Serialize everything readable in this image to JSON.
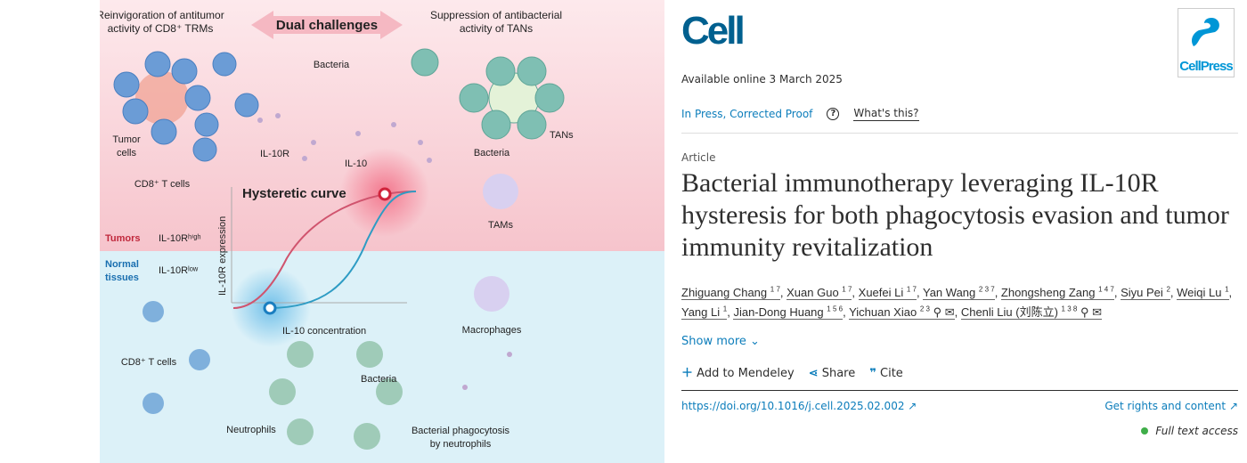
{
  "graphical_abstract": {
    "title_arrow": "Dual challenges",
    "left_heading": [
      "Reinvigoration of antitumor",
      "activity of CD8⁺ TRMs"
    ],
    "right_heading": [
      "Suppression of antibacterial",
      "activity of TANs"
    ],
    "labels": {
      "bacteria_top": "Bacteria",
      "tumor_cells": [
        "Tumor",
        "cells"
      ],
      "il10r": "IL-10R",
      "il10": "IL-10",
      "cd8_top": "CD8⁺ T cells",
      "tans": "TANs",
      "bacteria_right": "Bacteria",
      "tams": "TAMs",
      "hysteretic": "Hysteretic curve",
      "y_axis": "IL-10R expression",
      "x_axis": "IL-10 concentration",
      "tumors": "Tumors",
      "il10r_high": "IL-10Rʰⁱᵍʰ",
      "normal": [
        "Normal",
        "tissues"
      ],
      "il10r_low": "IL-10Rˡᵒʷ",
      "macrophages": "Macrophages",
      "cd8_bottom": "CD8⁺ T cells",
      "bacteria_bottom": "Bacteria",
      "neutrophils": "Neutrophils",
      "phagocytosis": [
        "Bacterial phagocytosis",
        "by neutrophils"
      ]
    },
    "colors": {
      "tumor_bg": "#fbe3e7",
      "normal_bg": "#d9f0f7",
      "red_curve": "#d0546e",
      "blue_curve": "#2e9cc4"
    }
  },
  "journal": {
    "logo": "Cell",
    "publisher_logo": "CellPress"
  },
  "available": "Available online 3 March 2025",
  "status": {
    "label": "In Press, Corrected Proof",
    "help": "?",
    "whats_this": "What's this?"
  },
  "article_type": "Article",
  "title": "Bacterial immunotherapy leveraging IL-10R hysteresis for both phagocytosis evasion and tumor immunity revitalization",
  "authors": [
    {
      "name": "Zhiguang Chang",
      "aff": "1 7"
    },
    {
      "name": "Xuan Guo",
      "aff": "1 7"
    },
    {
      "name": "Xuefei Li",
      "aff": "1 7"
    },
    {
      "name": "Yan Wang",
      "aff": "2 3 7"
    },
    {
      "name": "Zhongsheng Zang",
      "aff": "1 4 7"
    },
    {
      "name": "Siyu Pei",
      "aff": "2"
    },
    {
      "name": "Weiqi Lu",
      "aff": "1"
    },
    {
      "name": "Yang Li",
      "aff": "1"
    },
    {
      "name": "Jian-Dong Huang",
      "aff": "1 5 6"
    },
    {
      "name": "Yichuan Xiao",
      "aff": "2 3"
    },
    {
      "name": "Chenli Liu (刘陈立)",
      "aff": "1 3 8"
    }
  ],
  "show_more": "Show more",
  "actions": {
    "mendeley": "Add to Mendeley",
    "share": "Share",
    "cite": "Cite"
  },
  "doi": "https://doi.org/10.1016/j.cell.2025.02.002",
  "rights": "Get rights and content",
  "access": "Full text access"
}
